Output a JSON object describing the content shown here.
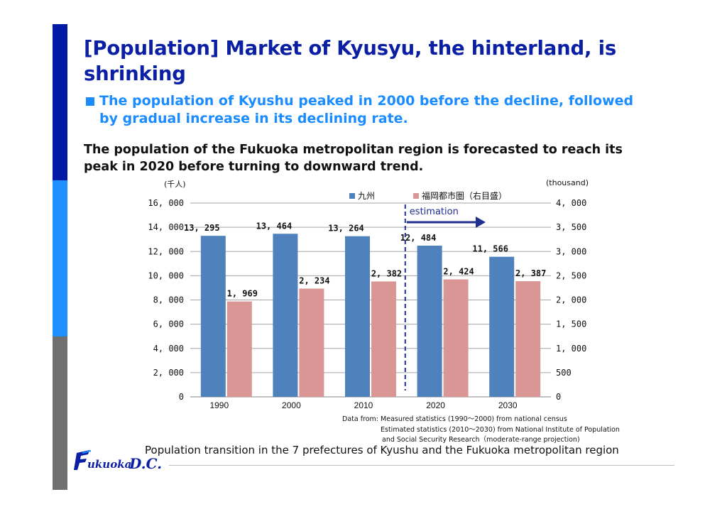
{
  "slide": {
    "title": "[Population] Market of Kyusyu, the hinterland, is shrinking",
    "bullet": "The population of Kyushu peaked in 2000 before the decline, followed by gradual increase in its declining rate.",
    "body": "The population of the Fukuoka metropolitan region is forecasted to reach its peak in 2020 before turning to downward trend.",
    "caption": "Population transition in the 7 prefectures of Kyushu and the Fukuoka metropolitan region",
    "source_lines": [
      "Data from: Measured statistics (1990～2000) from national census",
      "Estimated statistics (2010～2030) from National Institute of Population",
      "and Social Security Research（moderate-range projection)"
    ],
    "logo_text": "Fukuoka D.C.",
    "colors": {
      "title": "#0a1fa3",
      "accent": "#1a8cff",
      "bar_kyushu": "#4f81bd",
      "bar_fukuoka": "#d99694",
      "estimation": "#1f2e8f",
      "side_bar_top": "#001aa5",
      "side_bar_mid": "#1e90ff",
      "side_bar_bottom": "#707070"
    }
  },
  "chart_data": {
    "type": "bar",
    "categories": [
      "1990",
      "2000",
      "2010",
      "2020",
      "2030"
    ],
    "series": [
      {
        "name": "九州",
        "axis": "left",
        "values": [
          13295,
          13464,
          13264,
          12484,
          11566
        ],
        "labels": [
          "13, 295",
          "13, 464",
          "13, 264",
          "12, 484",
          "11, 566"
        ]
      },
      {
        "name": "福岡都市圏（右目盛）",
        "axis": "right",
        "values": [
          1969,
          2234,
          2382,
          2424,
          2387
        ],
        "labels": [
          "1, 969",
          "2, 234",
          "2, 382",
          "2, 424",
          "2, 387"
        ]
      }
    ],
    "y_left": {
      "unit_label": "(千人)",
      "ylim": [
        0,
        16000
      ],
      "ticks": [
        0,
        2000,
        4000,
        6000,
        8000,
        10000,
        12000,
        14000,
        16000
      ],
      "tick_labels": [
        "0",
        "2, 000",
        "4, 000",
        "6, 000",
        "8, 000",
        "10, 000",
        "12, 000",
        "14, 000",
        "16, 000"
      ]
    },
    "y_right": {
      "unit_label": "(thousand)",
      "ylim": [
        0,
        4000
      ],
      "ticks": [
        0,
        500,
        1000,
        1500,
        2000,
        2500,
        3000,
        3500,
        4000
      ],
      "tick_labels": [
        "0",
        "500",
        "1, 000",
        "1, 500",
        "2, 000",
        "2, 500",
        "3, 000",
        "3, 500",
        "4, 000"
      ]
    },
    "grid": true,
    "legend_position": "top",
    "annotation": {
      "text": "estimation",
      "divider_between": [
        "2010",
        "2020"
      ]
    }
  }
}
